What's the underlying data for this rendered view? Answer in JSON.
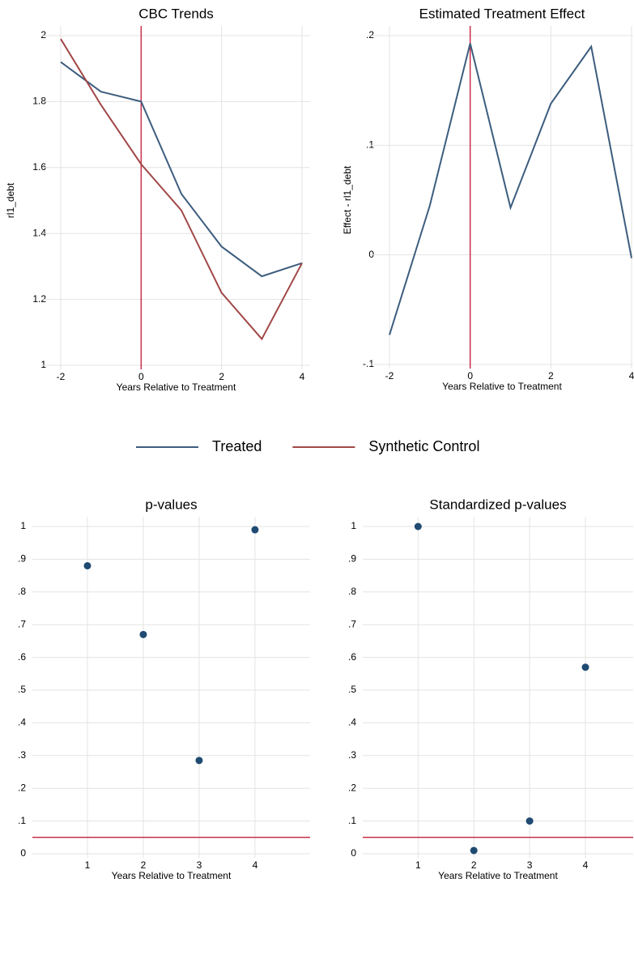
{
  "chart_data": [
    {
      "type": "line",
      "title": "CBC Trends",
      "x_label": "Years Relative to Treatment",
      "y_label": "rl1_debt",
      "x": [
        -2,
        -1,
        0,
        1,
        2,
        3,
        4
      ],
      "series": [
        {
          "name": "Treated",
          "color": "#3d5d7e",
          "values": [
            1.92,
            1.83,
            1.8,
            1.52,
            1.36,
            1.27,
            1.31
          ]
        },
        {
          "name": "Synthetic Control",
          "color": "#a14848",
          "values": [
            1.99,
            1.79,
            1.61,
            1.47,
            1.22,
            1.08,
            1.31
          ]
        }
      ],
      "xlim": [
        -2,
        4
      ],
      "xticks": [
        -2,
        0,
        2,
        4
      ],
      "ylim": [
        1,
        2
      ],
      "yticks": [
        1,
        1.2,
        1.4,
        1.6,
        1.8,
        2
      ],
      "xline": 0,
      "reference_color": "#c8304a",
      "grid": true,
      "legend": "bottom"
    },
    {
      "type": "line",
      "title": "Estimated Treatment Effect",
      "x_label": "Years Relative to Treatment",
      "y_label": "Effect - rl1_debt",
      "x": [
        -2,
        -1,
        0,
        1,
        2,
        3,
        4
      ],
      "series": [
        {
          "color": "#3d5d7e",
          "values": [
            -0.073,
            0.045,
            0.193,
            0.043,
            0.138,
            0.19,
            -0.003
          ]
        }
      ],
      "xlim": [
        -2,
        4
      ],
      "xticks": [
        -2,
        0,
        2,
        4
      ],
      "ylim": [
        -0.1,
        0.2
      ],
      "yticks": [
        {
          "value": -0.1,
          "label": "-.1"
        },
        0,
        {
          "value": 0.1,
          "label": ".1"
        },
        {
          "value": 0.2,
          "label": ".2"
        }
      ],
      "xline": 0,
      "reference_color": "#c8304a",
      "grid": true
    },
    {
      "type": "scatter",
      "title": "p-values",
      "x_label": "Years Relative to Treatment",
      "x": [
        1,
        2,
        3,
        4
      ],
      "values": [
        0.88,
        0.67,
        0.285,
        0.99
      ],
      "color": "#1f4a72",
      "xlim": [
        0.4,
        4.9
      ],
      "xticks": [
        1,
        2,
        3,
        4
      ],
      "ylim": [
        0,
        1
      ],
      "yticks": [
        0,
        {
          "value": 0.1,
          "label": ".1"
        },
        {
          "value": 0.2,
          "label": ".2"
        },
        {
          "value": 0.3,
          "label": ".3"
        },
        {
          "value": 0.4,
          "label": ".4"
        },
        {
          "value": 0.5,
          "label": ".5"
        },
        {
          "value": 0.6,
          "label": ".6"
        },
        {
          "value": 0.7,
          "label": ".7"
        },
        {
          "value": 0.8,
          "label": ".8"
        },
        {
          "value": 0.9,
          "label": ".9"
        },
        1
      ],
      "yline": 0.05,
      "reference_color": "#c8304a",
      "grid": true
    },
    {
      "type": "scatter",
      "title": "Standardized p-values",
      "x_label": "Years Relative to Treatment",
      "x": [
        1,
        2,
        3,
        4
      ],
      "values": [
        1.0,
        0.01,
        0.1,
        0.57
      ],
      "color": "#1f4a72",
      "xlim": [
        0.4,
        4.9
      ],
      "xticks": [
        1,
        2,
        3,
        4
      ],
      "ylim": [
        0,
        1
      ],
      "yticks": [
        0,
        {
          "value": 0.1,
          "label": ".1"
        },
        {
          "value": 0.2,
          "label": ".2"
        },
        {
          "value": 0.3,
          "label": ".3"
        },
        {
          "value": 0.4,
          "label": ".4"
        },
        {
          "value": 0.5,
          "label": ".5"
        },
        {
          "value": 0.6,
          "label": ".6"
        },
        {
          "value": 0.7,
          "label": ".7"
        },
        {
          "value": 0.8,
          "label": ".8"
        },
        {
          "value": 0.9,
          "label": ".9"
        },
        1
      ],
      "yline": 0.05,
      "reference_color": "#c8304a",
      "grid": true
    }
  ]
}
